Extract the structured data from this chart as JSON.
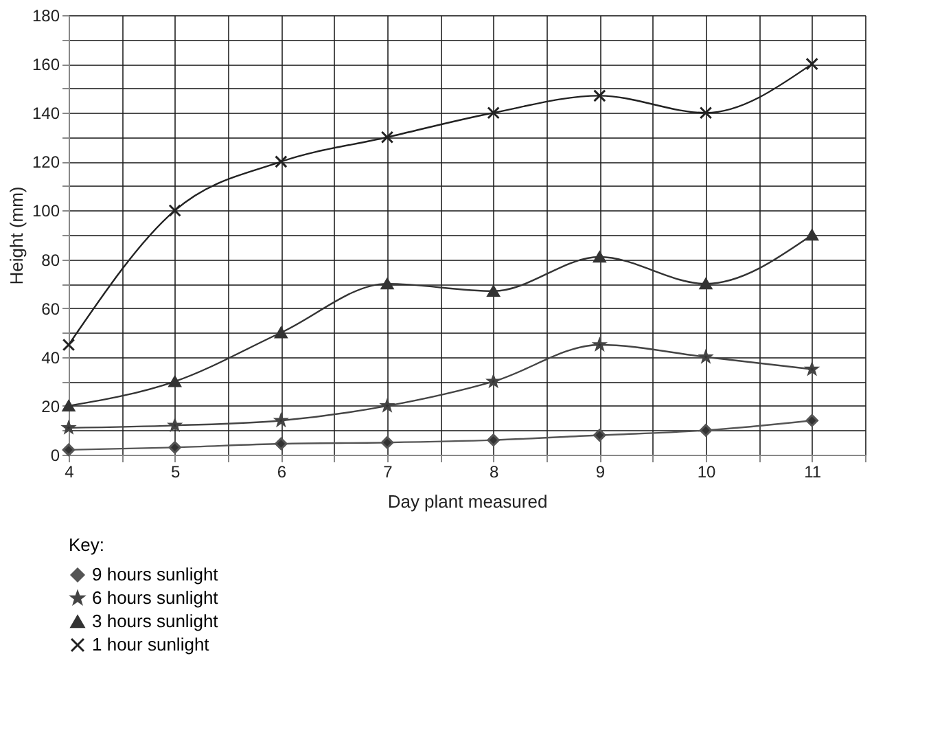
{
  "chart_data": {
    "type": "line",
    "xlabel": "Day plant measured",
    "ylabel": "Height (mm)",
    "legend_title": "Key:",
    "x": [
      4,
      5,
      6,
      7,
      8,
      9,
      10,
      11
    ],
    "xlim": [
      4,
      11.5
    ],
    "xticks": [
      4,
      {
        "value": 4.5,
        "label": null
      },
      5,
      {
        "value": 5.5,
        "label": null
      },
      6,
      {
        "value": 6.5,
        "label": null
      },
      7,
      {
        "value": 7.5,
        "label": null
      },
      8,
      {
        "value": 8.5,
        "label": null
      },
      9,
      {
        "value": 9.5,
        "label": null
      },
      10,
      {
        "value": 10.5,
        "label": null
      },
      11,
      {
        "value": 11.5,
        "label": null
      }
    ],
    "ylim": [
      0,
      180
    ],
    "yticks": [
      0,
      {
        "value": 10,
        "label": null
      },
      20,
      {
        "value": 30,
        "label": null
      },
      40,
      {
        "value": 50,
        "label": null
      },
      60,
      {
        "value": 70,
        "label": null
      },
      80,
      {
        "value": 90,
        "label": null
      },
      100,
      {
        "value": 110,
        "label": null
      },
      120,
      {
        "value": 130,
        "label": null
      },
      140,
      {
        "value": 150,
        "label": null
      },
      160,
      {
        "value": 170,
        "label": null
      },
      180
    ],
    "grid": true,
    "legend": "bottom left",
    "line_style": "solid",
    "series": [
      {
        "name": "9 hours sunlight",
        "color": "#555555",
        "marker": "diamond",
        "values": [
          2,
          3,
          4.5,
          5,
          6,
          8,
          10,
          14
        ]
      },
      {
        "name": "6 hours sunlight",
        "color": "#444444",
        "marker": "star",
        "values": [
          11,
          12,
          14,
          20,
          30,
          45,
          40,
          35
        ]
      },
      {
        "name": "3 hours sunlight",
        "color": "#333333",
        "marker": "triangle",
        "values": [
          20,
          30,
          50,
          70,
          67,
          81,
          70,
          90
        ]
      },
      {
        "name": "1 hour sunlight",
        "color": "#222222",
        "marker": "cross",
        "values": [
          45,
          100,
          120,
          130,
          140,
          147,
          140,
          160
        ]
      }
    ]
  }
}
